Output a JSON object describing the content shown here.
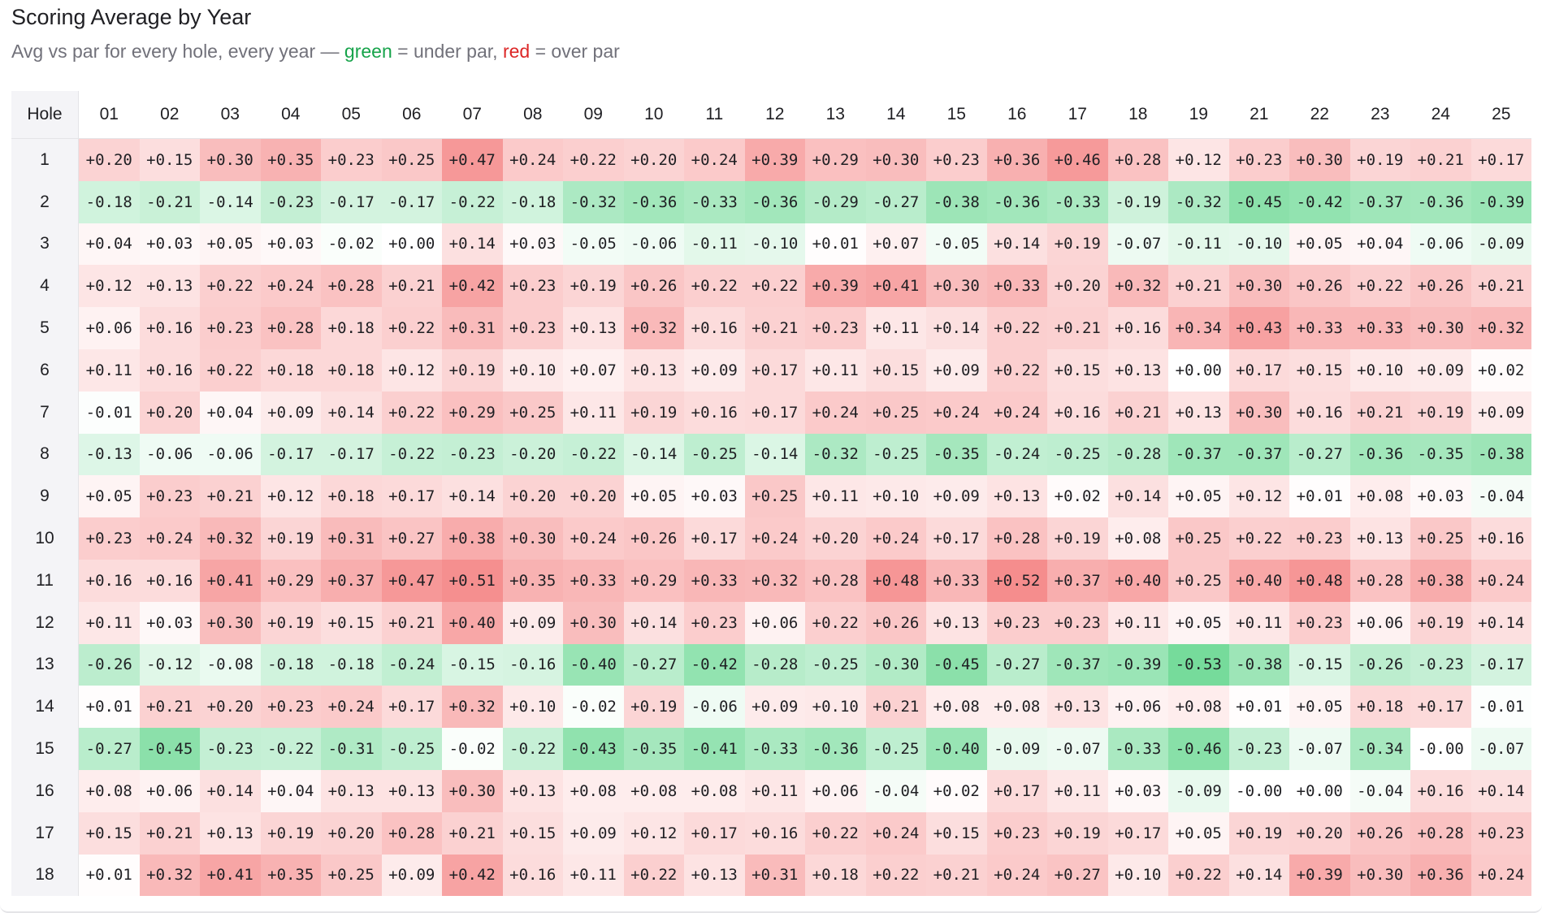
{
  "header": {
    "title": "Scoring Average by Year",
    "subtitle_prefix": "Avg vs par for every hole, every year — ",
    "subtitle_green_word": "green",
    "subtitle_mid": " = under par, ",
    "subtitle_red_word": "red",
    "subtitle_suffix": " = over par"
  },
  "colors": {
    "under_par": "#22c55e",
    "over_par": "#ef4444",
    "neutral": "#ffffff",
    "header_bg": "#f4f4f7",
    "text": "#1f1f23"
  },
  "chart_data": {
    "type": "heatmap",
    "title": "Scoring Average by Year",
    "row_header_label": "Hole",
    "columns": [
      "01",
      "02",
      "03",
      "04",
      "05",
      "06",
      "07",
      "08",
      "09",
      "10",
      "11",
      "12",
      "13",
      "14",
      "15",
      "16",
      "17",
      "18",
      "19",
      "21",
      "22",
      "23",
      "24",
      "25"
    ],
    "rows": [
      "1",
      "2",
      "3",
      "4",
      "5",
      "6",
      "7",
      "8",
      "9",
      "10",
      "11",
      "12",
      "13",
      "14",
      "15",
      "16",
      "17",
      "18"
    ],
    "values": [
      [
        "+0.20",
        "+0.15",
        "+0.30",
        "+0.35",
        "+0.23",
        "+0.25",
        "+0.47",
        "+0.24",
        "+0.22",
        "+0.20",
        "+0.24",
        "+0.39",
        "+0.29",
        "+0.30",
        "+0.23",
        "+0.36",
        "+0.46",
        "+0.28",
        "+0.12",
        "+0.23",
        "+0.30",
        "+0.19",
        "+0.21",
        "+0.17"
      ],
      [
        "-0.18",
        "-0.21",
        "-0.14",
        "-0.23",
        "-0.17",
        "-0.17",
        "-0.22",
        "-0.18",
        "-0.32",
        "-0.36",
        "-0.33",
        "-0.36",
        "-0.29",
        "-0.27",
        "-0.38",
        "-0.36",
        "-0.33",
        "-0.19",
        "-0.32",
        "-0.45",
        "-0.42",
        "-0.37",
        "-0.36",
        "-0.39"
      ],
      [
        "+0.04",
        "+0.03",
        "+0.05",
        "+0.03",
        "-0.02",
        "+0.00",
        "+0.14",
        "+0.03",
        "-0.05",
        "-0.06",
        "-0.11",
        "-0.10",
        "+0.01",
        "+0.07",
        "-0.05",
        "+0.14",
        "+0.19",
        "-0.07",
        "-0.11",
        "-0.10",
        "+0.05",
        "+0.04",
        "-0.06",
        "-0.09"
      ],
      [
        "+0.12",
        "+0.13",
        "+0.22",
        "+0.24",
        "+0.28",
        "+0.21",
        "+0.42",
        "+0.23",
        "+0.19",
        "+0.26",
        "+0.22",
        "+0.22",
        "+0.39",
        "+0.41",
        "+0.30",
        "+0.33",
        "+0.20",
        "+0.32",
        "+0.21",
        "+0.30",
        "+0.26",
        "+0.22",
        "+0.26",
        "+0.21"
      ],
      [
        "+0.06",
        "+0.16",
        "+0.23",
        "+0.28",
        "+0.18",
        "+0.22",
        "+0.31",
        "+0.23",
        "+0.13",
        "+0.32",
        "+0.16",
        "+0.21",
        "+0.23",
        "+0.11",
        "+0.14",
        "+0.22",
        "+0.21",
        "+0.16",
        "+0.34",
        "+0.43",
        "+0.33",
        "+0.33",
        "+0.30",
        "+0.32"
      ],
      [
        "+0.11",
        "+0.16",
        "+0.22",
        "+0.18",
        "+0.18",
        "+0.12",
        "+0.19",
        "+0.10",
        "+0.07",
        "+0.13",
        "+0.09",
        "+0.17",
        "+0.11",
        "+0.15",
        "+0.09",
        "+0.22",
        "+0.15",
        "+0.13",
        "+0.00",
        "+0.17",
        "+0.15",
        "+0.10",
        "+0.09",
        "+0.02"
      ],
      [
        "-0.01",
        "+0.20",
        "+0.04",
        "+0.09",
        "+0.14",
        "+0.22",
        "+0.29",
        "+0.25",
        "+0.11",
        "+0.19",
        "+0.16",
        "+0.17",
        "+0.24",
        "+0.25",
        "+0.24",
        "+0.24",
        "+0.16",
        "+0.21",
        "+0.13",
        "+0.30",
        "+0.16",
        "+0.21",
        "+0.19",
        "+0.09"
      ],
      [
        "-0.13",
        "-0.06",
        "-0.06",
        "-0.17",
        "-0.17",
        "-0.22",
        "-0.23",
        "-0.20",
        "-0.22",
        "-0.14",
        "-0.25",
        "-0.14",
        "-0.32",
        "-0.25",
        "-0.35",
        "-0.24",
        "-0.25",
        "-0.28",
        "-0.37",
        "-0.37",
        "-0.27",
        "-0.36",
        "-0.35",
        "-0.38"
      ],
      [
        "+0.05",
        "+0.23",
        "+0.21",
        "+0.12",
        "+0.18",
        "+0.17",
        "+0.14",
        "+0.20",
        "+0.20",
        "+0.05",
        "+0.03",
        "+0.25",
        "+0.11",
        "+0.10",
        "+0.09",
        "+0.13",
        "+0.02",
        "+0.14",
        "+0.05",
        "+0.12",
        "+0.01",
        "+0.08",
        "+0.03",
        "-0.04"
      ],
      [
        "+0.23",
        "+0.24",
        "+0.32",
        "+0.19",
        "+0.31",
        "+0.27",
        "+0.38",
        "+0.30",
        "+0.24",
        "+0.26",
        "+0.17",
        "+0.24",
        "+0.20",
        "+0.24",
        "+0.17",
        "+0.28",
        "+0.19",
        "+0.08",
        "+0.25",
        "+0.22",
        "+0.23",
        "+0.13",
        "+0.25",
        "+0.16"
      ],
      [
        "+0.16",
        "+0.16",
        "+0.41",
        "+0.29",
        "+0.37",
        "+0.47",
        "+0.51",
        "+0.35",
        "+0.33",
        "+0.29",
        "+0.33",
        "+0.32",
        "+0.28",
        "+0.48",
        "+0.33",
        "+0.52",
        "+0.37",
        "+0.40",
        "+0.25",
        "+0.40",
        "+0.48",
        "+0.28",
        "+0.38",
        "+0.24"
      ],
      [
        "+0.11",
        "+0.03",
        "+0.30",
        "+0.19",
        "+0.15",
        "+0.21",
        "+0.40",
        "+0.09",
        "+0.30",
        "+0.14",
        "+0.23",
        "+0.06",
        "+0.22",
        "+0.26",
        "+0.13",
        "+0.23",
        "+0.23",
        "+0.11",
        "+0.05",
        "+0.11",
        "+0.23",
        "+0.06",
        "+0.19",
        "+0.14"
      ],
      [
        "-0.26",
        "-0.12",
        "-0.08",
        "-0.18",
        "-0.18",
        "-0.24",
        "-0.15",
        "-0.16",
        "-0.40",
        "-0.27",
        "-0.42",
        "-0.28",
        "-0.25",
        "-0.30",
        "-0.45",
        "-0.27",
        "-0.37",
        "-0.39",
        "-0.53",
        "-0.38",
        "-0.15",
        "-0.26",
        "-0.23",
        "-0.17"
      ],
      [
        "+0.01",
        "+0.21",
        "+0.20",
        "+0.23",
        "+0.24",
        "+0.17",
        "+0.32",
        "+0.10",
        "-0.02",
        "+0.19",
        "-0.06",
        "+0.09",
        "+0.10",
        "+0.21",
        "+0.08",
        "+0.08",
        "+0.13",
        "+0.06",
        "+0.08",
        "+0.01",
        "+0.05",
        "+0.18",
        "+0.17",
        "-0.01"
      ],
      [
        "-0.27",
        "-0.45",
        "-0.23",
        "-0.22",
        "-0.31",
        "-0.25",
        "-0.02",
        "-0.22",
        "-0.43",
        "-0.35",
        "-0.41",
        "-0.33",
        "-0.36",
        "-0.25",
        "-0.40",
        "-0.09",
        "-0.07",
        "-0.33",
        "-0.46",
        "-0.23",
        "-0.07",
        "-0.34",
        "-0.00",
        "-0.07"
      ],
      [
        "+0.08",
        "+0.06",
        "+0.14",
        "+0.04",
        "+0.13",
        "+0.13",
        "+0.30",
        "+0.13",
        "+0.08",
        "+0.08",
        "+0.08",
        "+0.11",
        "+0.06",
        "-0.04",
        "+0.02",
        "+0.17",
        "+0.11",
        "+0.03",
        "-0.09",
        "-0.00",
        "+0.00",
        "-0.04",
        "+0.16",
        "+0.14"
      ],
      [
        "+0.15",
        "+0.21",
        "+0.13",
        "+0.19",
        "+0.20",
        "+0.28",
        "+0.21",
        "+0.15",
        "+0.09",
        "+0.12",
        "+0.17",
        "+0.16",
        "+0.22",
        "+0.24",
        "+0.15",
        "+0.23",
        "+0.19",
        "+0.17",
        "+0.05",
        "+0.19",
        "+0.20",
        "+0.26",
        "+0.28",
        "+0.23"
      ],
      [
        "+0.01",
        "+0.32",
        "+0.41",
        "+0.35",
        "+0.25",
        "+0.09",
        "+0.42",
        "+0.16",
        "+0.11",
        "+0.22",
        "+0.13",
        "+0.31",
        "+0.18",
        "+0.22",
        "+0.21",
        "+0.24",
        "+0.27",
        "+0.10",
        "+0.22",
        "+0.14",
        "+0.39",
        "+0.30",
        "+0.36",
        "+0.24"
      ]
    ]
  }
}
